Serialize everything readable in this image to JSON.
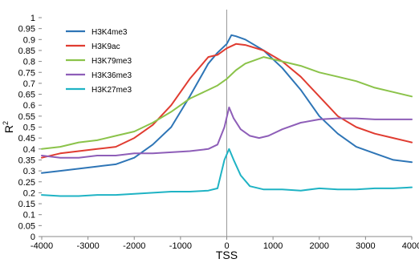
{
  "chart_data": {
    "type": "line",
    "xlabel": "TSS",
    "ylabel": "R",
    "ylabel_sup": "2",
    "xlim": [
      -4000,
      4000
    ],
    "ylim": [
      0,
      1
    ],
    "xticks": [
      -4000,
      -3000,
      -2000,
      -1000,
      0,
      1000,
      2000,
      3000,
      4000
    ],
    "yticks": [
      0,
      0.05,
      0.1,
      0.15,
      0.2,
      0.25,
      0.3,
      0.35,
      0.4,
      0.45,
      0.5,
      0.55,
      0.6,
      0.65,
      0.7,
      0.75,
      0.8,
      0.85,
      0.9,
      0.95,
      1
    ],
    "ytick_labels": [
      "0",
      "0.05",
      "0.1",
      "0.15",
      "0.2",
      "0.25",
      "0.3",
      "0.35",
      "0.4",
      "0.45",
      "0.5",
      "0.55",
      "0.6",
      "0.65",
      "0.7",
      "0.75",
      "0.8",
      "0.85",
      "0.9",
      "0.95",
      "1"
    ],
    "reference_line_x": 0,
    "legend_position": "top-left",
    "grid": false,
    "series": [
      {
        "name": "H3K4me3",
        "color": "#2e75b6",
        "x": [
          -4000,
          -3600,
          -3200,
          -2800,
          -2400,
          -2000,
          -1600,
          -1200,
          -800,
          -400,
          -200,
          0,
          100,
          200,
          400,
          800,
          1200,
          1600,
          2000,
          2400,
          2800,
          3200,
          3600,
          4000
        ],
        "y": [
          0.29,
          0.3,
          0.31,
          0.32,
          0.33,
          0.36,
          0.42,
          0.5,
          0.64,
          0.79,
          0.84,
          0.88,
          0.92,
          0.915,
          0.9,
          0.85,
          0.77,
          0.67,
          0.55,
          0.47,
          0.41,
          0.38,
          0.35,
          0.34
        ]
      },
      {
        "name": "H3K9ac",
        "color": "#e03c31",
        "x": [
          -4000,
          -3600,
          -3200,
          -2800,
          -2400,
          -2000,
          -1600,
          -1200,
          -800,
          -400,
          -200,
          0,
          200,
          400,
          800,
          1200,
          1600,
          2000,
          2400,
          2800,
          3200,
          3600,
          4000
        ],
        "y": [
          0.36,
          0.38,
          0.39,
          0.4,
          0.41,
          0.45,
          0.51,
          0.6,
          0.72,
          0.82,
          0.83,
          0.86,
          0.88,
          0.875,
          0.85,
          0.8,
          0.73,
          0.64,
          0.55,
          0.5,
          0.47,
          0.45,
          0.43
        ]
      },
      {
        "name": "H3K79me3",
        "color": "#8bc34a",
        "x": [
          -4000,
          -3600,
          -3200,
          -2800,
          -2400,
          -2000,
          -1600,
          -1200,
          -800,
          -400,
          -200,
          0,
          200,
          400,
          800,
          1200,
          1600,
          2000,
          2400,
          2800,
          3200,
          3600,
          4000
        ],
        "y": [
          0.4,
          0.41,
          0.43,
          0.44,
          0.46,
          0.48,
          0.52,
          0.57,
          0.63,
          0.67,
          0.69,
          0.72,
          0.76,
          0.79,
          0.82,
          0.8,
          0.78,
          0.75,
          0.73,
          0.71,
          0.68,
          0.66,
          0.64
        ]
      },
      {
        "name": "H3K36me3",
        "color": "#8e5eb8",
        "x": [
          -4000,
          -3600,
          -3200,
          -2800,
          -2400,
          -2000,
          -1600,
          -1200,
          -800,
          -400,
          -200,
          -50,
          50,
          150,
          300,
          500,
          700,
          900,
          1200,
          1600,
          2000,
          2400,
          2800,
          3200,
          3600,
          4000
        ],
        "y": [
          0.37,
          0.36,
          0.36,
          0.37,
          0.37,
          0.38,
          0.38,
          0.385,
          0.39,
          0.4,
          0.42,
          0.5,
          0.59,
          0.54,
          0.49,
          0.46,
          0.45,
          0.46,
          0.49,
          0.52,
          0.535,
          0.54,
          0.54,
          0.535,
          0.535,
          0.535
        ]
      },
      {
        "name": "H3K27me3",
        "color": "#1fb3c4",
        "x": [
          -4000,
          -3600,
          -3200,
          -2800,
          -2400,
          -2000,
          -1600,
          -1200,
          -800,
          -400,
          -200,
          -50,
          50,
          150,
          300,
          500,
          800,
          1200,
          1600,
          2000,
          2400,
          2800,
          3200,
          3600,
          4000
        ],
        "y": [
          0.19,
          0.185,
          0.185,
          0.19,
          0.19,
          0.195,
          0.2,
          0.205,
          0.205,
          0.21,
          0.22,
          0.35,
          0.4,
          0.35,
          0.28,
          0.23,
          0.215,
          0.215,
          0.21,
          0.22,
          0.215,
          0.215,
          0.22,
          0.22,
          0.225
        ]
      }
    ]
  }
}
